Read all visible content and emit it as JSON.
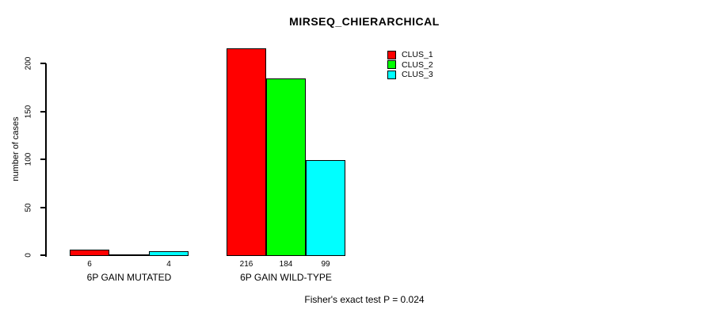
{
  "chart_data": {
    "type": "bar",
    "title": "MIRSEQ_CHIERARCHICAL",
    "ylabel": "number of cases",
    "xlabel": "",
    "yticks": [
      0,
      50,
      100,
      150,
      200
    ],
    "ylim": [
      0,
      216
    ],
    "grid": false,
    "legend_position": "top-right",
    "categories": [
      "6P GAIN MUTATED",
      "6P GAIN WILD-TYPE"
    ],
    "series": [
      {
        "name": "CLUS_1",
        "color": "#ff0000",
        "values": [
          6,
          216
        ]
      },
      {
        "name": "CLUS_2",
        "color": "#00ff00",
        "values": [
          0,
          184
        ]
      },
      {
        "name": "CLUS_3",
        "color": "#00ffff",
        "values": [
          4,
          99
        ]
      }
    ],
    "bar_value_labels": [
      [
        "6",
        "",
        "4"
      ],
      [
        "216",
        "184",
        "99"
      ]
    ],
    "annotation": "Fisher's exact test P = 0.024"
  },
  "colors": {
    "background": "#ffffff",
    "text": "#000000",
    "bar_border": "#000000",
    "clus_1": "#ff0000",
    "clus_2": "#00ff00",
    "clus_3": "#00ffff"
  }
}
